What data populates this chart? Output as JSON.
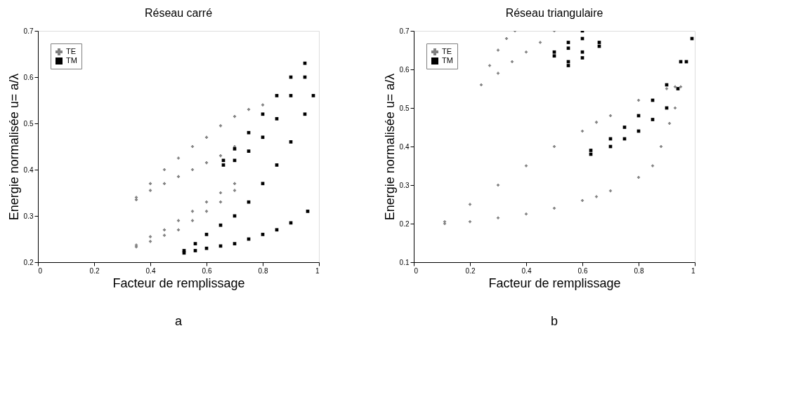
{
  "chart_data": [
    {
      "type": "scatter",
      "title": "Réseau  carré",
      "xlabel": "Facteur de remplissage",
      "ylabel": "Energie normalisée u= a/λ",
      "annotations": [
        "a"
      ],
      "xlim": [
        0,
        1
      ],
      "ylim": [
        0.2,
        0.7
      ],
      "xticks": [
        0,
        0.2,
        0.4,
        0.6,
        0.8,
        1
      ],
      "yticks": [
        0.2,
        0.3,
        0.4,
        0.5,
        0.6,
        0.7
      ],
      "grid": false,
      "legend": "top left",
      "series": [
        {
          "name": "TE",
          "color": "#808080",
          "marker": "cross",
          "x": [
            0.35,
            0.4,
            0.45,
            0.5,
            0.55,
            0.6,
            0.65,
            0.7,
            0.75,
            0.8,
            0.35,
            0.4,
            0.45,
            0.5,
            0.55,
            0.6,
            0.65,
            0.7
          ],
          "values": [
            0.34,
            0.37,
            0.4,
            0.425,
            0.45,
            0.47,
            0.495,
            0.515,
            0.53,
            0.54,
            0.335,
            0.355,
            0.37,
            0.385,
            0.4,
            0.415,
            0.43,
            0.45
          ]
        },
        {
          "color": "#808080",
          "marker": "cross",
          "x": [
            0.35,
            0.4,
            0.45,
            0.5,
            0.55,
            0.6,
            0.65,
            0.7,
            0.35,
            0.4,
            0.45,
            0.5,
            0.55,
            0.6,
            0.65,
            0.7
          ],
          "values": [
            0.237,
            0.255,
            0.27,
            0.29,
            0.31,
            0.33,
            0.35,
            0.37,
            0.233,
            0.245,
            0.258,
            0.27,
            0.29,
            0.31,
            0.33,
            0.355
          ]
        },
        {
          "name": "TM",
          "color": "#000000",
          "marker": "square",
          "x": [
            0.66,
            0.7,
            0.75,
            0.8,
            0.85,
            0.9,
            0.95,
            0.66,
            0.7,
            0.75,
            0.8,
            0.85,
            0.9,
            0.95
          ],
          "values": [
            0.42,
            0.445,
            0.48,
            0.52,
            0.56,
            0.6,
            0.63,
            0.41,
            0.42,
            0.44,
            0.47,
            0.51,
            0.56,
            0.6
          ]
        },
        {
          "color": "#000000",
          "marker": "square",
          "x": [
            0.52,
            0.56,
            0.6,
            0.65,
            0.7,
            0.75,
            0.8,
            0.85,
            0.9,
            0.95,
            0.98,
            0.52,
            0.56,
            0.6,
            0.65,
            0.7,
            0.75,
            0.8,
            0.85,
            0.9,
            0.96
          ],
          "values": [
            0.225,
            0.24,
            0.26,
            0.28,
            0.3,
            0.33,
            0.37,
            0.41,
            0.46,
            0.52,
            0.56,
            0.22,
            0.225,
            0.23,
            0.235,
            0.24,
            0.25,
            0.26,
            0.27,
            0.285,
            0.31
          ]
        }
      ]
    },
    {
      "type": "scatter",
      "title": "Réseau triangulaire",
      "xlabel": "Facteur de remplissage",
      "ylabel": "Energie normalisée u= a/λ",
      "annotations": [
        "b"
      ],
      "xlim": [
        0,
        1
      ],
      "ylim": [
        0.1,
        0.7
      ],
      "xticks": [
        0,
        0.2,
        0.4,
        0.6,
        0.8,
        1
      ],
      "yticks": [
        0.1,
        0.2,
        0.3,
        0.4,
        0.5,
        0.6,
        0.7
      ],
      "grid": false,
      "legend": "top left",
      "series": [
        {
          "name": "TE",
          "color": "#808080",
          "marker": "cross",
          "x": [
            0.11,
            0.2,
            0.3,
            0.4,
            0.5,
            0.6,
            0.65,
            0.7,
            0.8,
            0.9,
            0.93,
            0.11,
            0.2,
            0.3,
            0.4,
            0.5,
            0.6,
            0.65,
            0.7,
            0.8,
            0.85,
            0.88,
            0.91,
            0.93,
            0.95
          ],
          "values": [
            0.205,
            0.25,
            0.3,
            0.35,
            0.4,
            0.44,
            0.463,
            0.48,
            0.52,
            0.55,
            0.555,
            0.2,
            0.205,
            0.215,
            0.225,
            0.24,
            0.26,
            0.27,
            0.285,
            0.32,
            0.35,
            0.4,
            0.46,
            0.5,
            0.555
          ]
        },
        {
          "color": "#808080",
          "marker": "cross",
          "x": [
            0.24,
            0.27,
            0.3,
            0.33,
            0.36,
            0.3,
            0.35,
            0.4,
            0.45,
            0.5
          ],
          "values": [
            0.56,
            0.61,
            0.65,
            0.68,
            0.7,
            0.59,
            0.62,
            0.645,
            0.67,
            0.7
          ]
        },
        {
          "name": "TM",
          "color": "#000000",
          "marker": "square",
          "x": [
            0.63,
            0.7,
            0.75,
            0.8,
            0.85,
            0.9,
            0.95,
            0.99,
            0.63,
            0.7,
            0.75,
            0.8,
            0.85,
            0.9,
            0.94,
            0.97
          ],
          "values": [
            0.39,
            0.42,
            0.45,
            0.48,
            0.52,
            0.56,
            0.62,
            0.68,
            0.38,
            0.4,
            0.42,
            0.44,
            0.47,
            0.5,
            0.55,
            0.62
          ]
        },
        {
          "color": "#000000",
          "marker": "square",
          "x": [
            0.5,
            0.55,
            0.6,
            0.5,
            0.55,
            0.6
          ],
          "values": [
            0.645,
            0.67,
            0.7,
            0.635,
            0.655,
            0.68
          ]
        },
        {
          "color": "#000000",
          "marker": "square",
          "x": [
            0.55,
            0.6,
            0.66,
            0.55,
            0.6,
            0.66
          ],
          "values": [
            0.62,
            0.645,
            0.67,
            0.61,
            0.63,
            0.66
          ]
        }
      ]
    }
  ]
}
